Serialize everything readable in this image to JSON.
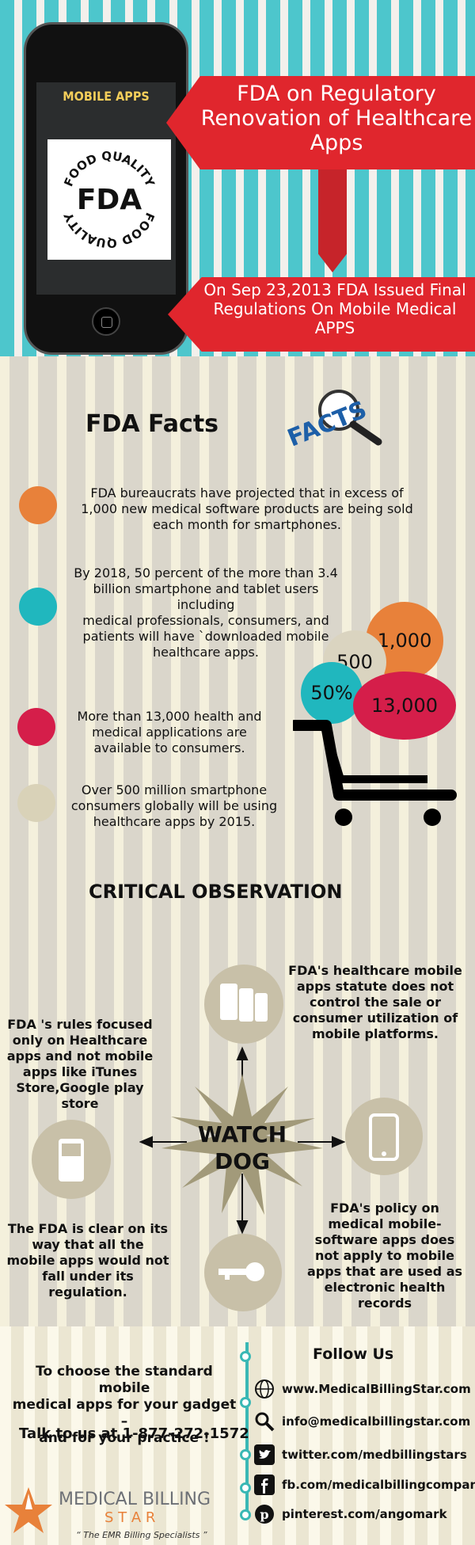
{
  "hero": {
    "mobile_apps_label": "MOBILE APPS",
    "seal_word": "FDA",
    "seal_ring_text": "FOOD QUALITY",
    "banner1": [
      "FDA on Regulatory",
      "Renovation of Healthcare",
      "Apps"
    ],
    "banner2": [
      "On Sep 23,2013 FDA Issued Final",
      "Regulations On Mobile Medical",
      "APPS"
    ]
  },
  "facts": {
    "title": "FDA Facts",
    "facts_logo": "FACTS",
    "items": [
      {
        "color": "#e8813a",
        "lines": [
          "FDA bureaucrats have projected that in excess of",
          "1,000 new medical software products are being sold",
          "each month for smartphones."
        ]
      },
      {
        "color": "#20b7be",
        "lines": [
          "By 2018, 50 percent of the more than 3.4",
          "billion smartphone and tablet users  including",
          "medical professionals, consumers, and",
          "patients will have `downloaded mobile",
          "healthcare apps."
        ]
      },
      {
        "color": "#d51e4a",
        "lines": [
          "More than 13,000 health and",
          "medical applications are",
          "available to consumers."
        ]
      },
      {
        "color": "#d9d2b8",
        "lines": [
          "Over 500 million smartphone",
          "consumers globally will be using",
          "healthcare apps by 2015."
        ]
      }
    ],
    "bubbles": {
      "b1000": "1,000",
      "b500": "500",
      "b50": "50%",
      "b13000": "13,000"
    }
  },
  "critical": {
    "title": "CRITICAL OBSERVATION",
    "center": [
      "WATCH",
      "DOG"
    ],
    "top_right": [
      "FDA's healthcare mobile",
      "apps statute does not",
      "control the sale or",
      "consumer utilization of",
      "mobile platforms."
    ],
    "left": [
      "FDA 's rules focused",
      "only on Healthcare",
      "apps and not mobile",
      "apps like iTunes",
      "Store,Google play",
      "store"
    ],
    "bottom_left": [
      "The FDA is clear on its",
      "way that all the",
      "mobile apps would not",
      "fall under its",
      "regulation."
    ],
    "bottom_right": [
      "FDA's policy on",
      "medical mobile-",
      "software apps does",
      "not apply to mobile",
      "apps that are used as",
      "electronic health",
      "records"
    ]
  },
  "footer": {
    "cta": [
      "To choose the standard mobile",
      "medical apps for your gadget –",
      "and for your practice !"
    ],
    "talk": "Talk to us at 1-877-272-1572",
    "follow": "Follow Us",
    "contacts": [
      {
        "icon": "globe-icon",
        "text": "www.MedicalBillingStar.com"
      },
      {
        "icon": "search-icon",
        "text": "info@medicalbillingstar.com"
      },
      {
        "icon": "twitter-icon",
        "text": "twitter.com/medbillingstars"
      },
      {
        "icon": "facebook-icon",
        "text": "fb.com/medicalbillingcompany"
      },
      {
        "icon": "pinterest-icon",
        "text": "pinterest.com/angomark"
      }
    ],
    "brand": {
      "name_top": "MEDICAL BILLING",
      "name_bottom": "S T A R",
      "tagline": "“ The EMR Billing Specialists ”"
    }
  }
}
